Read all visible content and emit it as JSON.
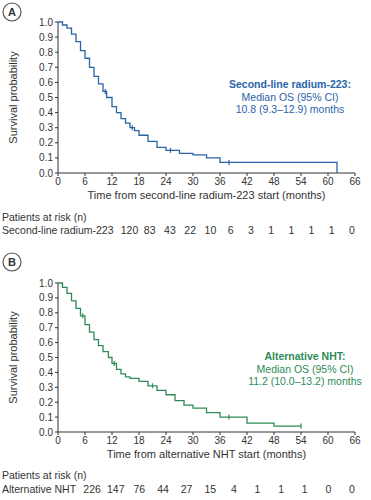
{
  "chart_data": [
    {
      "type": "line",
      "panel_label": "A",
      "y_label": "Survival probability",
      "x_label": "Time from second-line radium-223 start (months)",
      "annotations": [
        "Second-line radium-223:",
        "Median OS (95% CI)",
        "10.8 (9.3–12.9) months"
      ],
      "xlim": [
        0,
        66
      ],
      "xticks": [
        0,
        6,
        12,
        18,
        24,
        30,
        36,
        42,
        48,
        54,
        60,
        66
      ],
      "ylim": [
        0,
        1
      ],
      "yticks": [
        {
          "value": 0,
          "label": "0.0"
        },
        {
          "value": 0.1,
          "label": "0.1"
        },
        {
          "value": 0.2,
          "label": "0.2"
        },
        {
          "value": 0.3,
          "label": "0.3"
        },
        {
          "value": 0.4,
          "label": "0.4"
        },
        {
          "value": 0.5,
          "label": "0.5"
        },
        {
          "value": 0.6,
          "label": "0.6"
        },
        {
          "value": 0.7,
          "label": "0.7"
        },
        {
          "value": 0.8,
          "label": "0.8"
        },
        {
          "value": 0.9,
          "label": "0.9"
        },
        {
          "value": 1,
          "label": "1.0"
        }
      ],
      "series": [
        {
          "color": "#2a64a8",
          "line_style": "step",
          "marker": "tick",
          "x": [
            0,
            1,
            2,
            3,
            4,
            5,
            6,
            7,
            8,
            9,
            10,
            10.8,
            12,
            13,
            14,
            15,
            16,
            17,
            18,
            20,
            22,
            24,
            27,
            30,
            33,
            36,
            62
          ],
          "values": [
            1.0,
            0.98,
            0.96,
            0.92,
            0.87,
            0.81,
            0.76,
            0.7,
            0.64,
            0.59,
            0.54,
            0.5,
            0.44,
            0.4,
            0.36,
            0.33,
            0.3,
            0.28,
            0.25,
            0.21,
            0.17,
            0.15,
            0.13,
            0.12,
            0.1,
            0.07,
            0.0
          ],
          "censor_x": [
            10.5,
            16.5,
            25,
            38
          ],
          "censor_y": [
            0.54,
            0.3,
            0.15,
            0.07
          ]
        }
      ],
      "risk_table": {
        "title": "Patients at risk (n)",
        "label": "Second-line radium-223",
        "values": [
          120,
          83,
          43,
          22,
          10,
          6,
          3,
          1,
          1,
          1,
          1,
          0
        ]
      }
    },
    {
      "type": "line",
      "panel_label": "B",
      "y_label": "Survival probability",
      "x_label": "Time from alternative NHT start (months)",
      "annotations": [
        "Alternative NHT:",
        "Median OS (95% CI)",
        "11.2 (10.0–13.2) months"
      ],
      "xlim": [
        0,
        66
      ],
      "xticks": [
        0,
        6,
        12,
        18,
        24,
        30,
        36,
        42,
        48,
        54,
        60,
        66
      ],
      "ylim": [
        0,
        1
      ],
      "yticks": [
        {
          "value": 0,
          "label": "0.0"
        },
        {
          "value": 0.1,
          "label": "0.1"
        },
        {
          "value": 0.2,
          "label": "0.2"
        },
        {
          "value": 0.3,
          "label": "0.3"
        },
        {
          "value": 0.4,
          "label": "0.4"
        },
        {
          "value": 0.5,
          "label": "0.5"
        },
        {
          "value": 0.6,
          "label": "0.6"
        },
        {
          "value": 0.7,
          "label": "0.7"
        },
        {
          "value": 0.8,
          "label": "0.8"
        },
        {
          "value": 0.9,
          "label": "0.9"
        },
        {
          "value": 1,
          "label": "1.0"
        }
      ],
      "series": [
        {
          "color": "#2e8b57",
          "line_style": "step",
          "marker": "tick",
          "x": [
            0,
            1,
            2,
            3,
            4,
            5,
            6,
            7,
            8,
            9,
            10,
            11.2,
            12,
            13,
            14,
            15,
            16,
            18,
            20,
            22,
            24,
            26,
            28,
            30,
            33,
            36,
            42,
            48,
            54
          ],
          "values": [
            1.0,
            0.97,
            0.93,
            0.88,
            0.83,
            0.78,
            0.72,
            0.67,
            0.62,
            0.58,
            0.54,
            0.5,
            0.46,
            0.42,
            0.39,
            0.37,
            0.36,
            0.34,
            0.31,
            0.28,
            0.25,
            0.21,
            0.18,
            0.16,
            0.13,
            0.1,
            0.06,
            0.04,
            0.04
          ],
          "censor_x": [
            5.5,
            12.5,
            21,
            38,
            54
          ],
          "censor_y": [
            0.78,
            0.46,
            0.31,
            0.1,
            0.04
          ]
        }
      ],
      "risk_table": {
        "title": "Patients at risk (n)",
        "label": "Alternative NHT",
        "values": [
          226,
          147,
          76,
          44,
          27,
          15,
          4,
          1,
          1,
          1,
          0,
          0
        ]
      }
    }
  ]
}
